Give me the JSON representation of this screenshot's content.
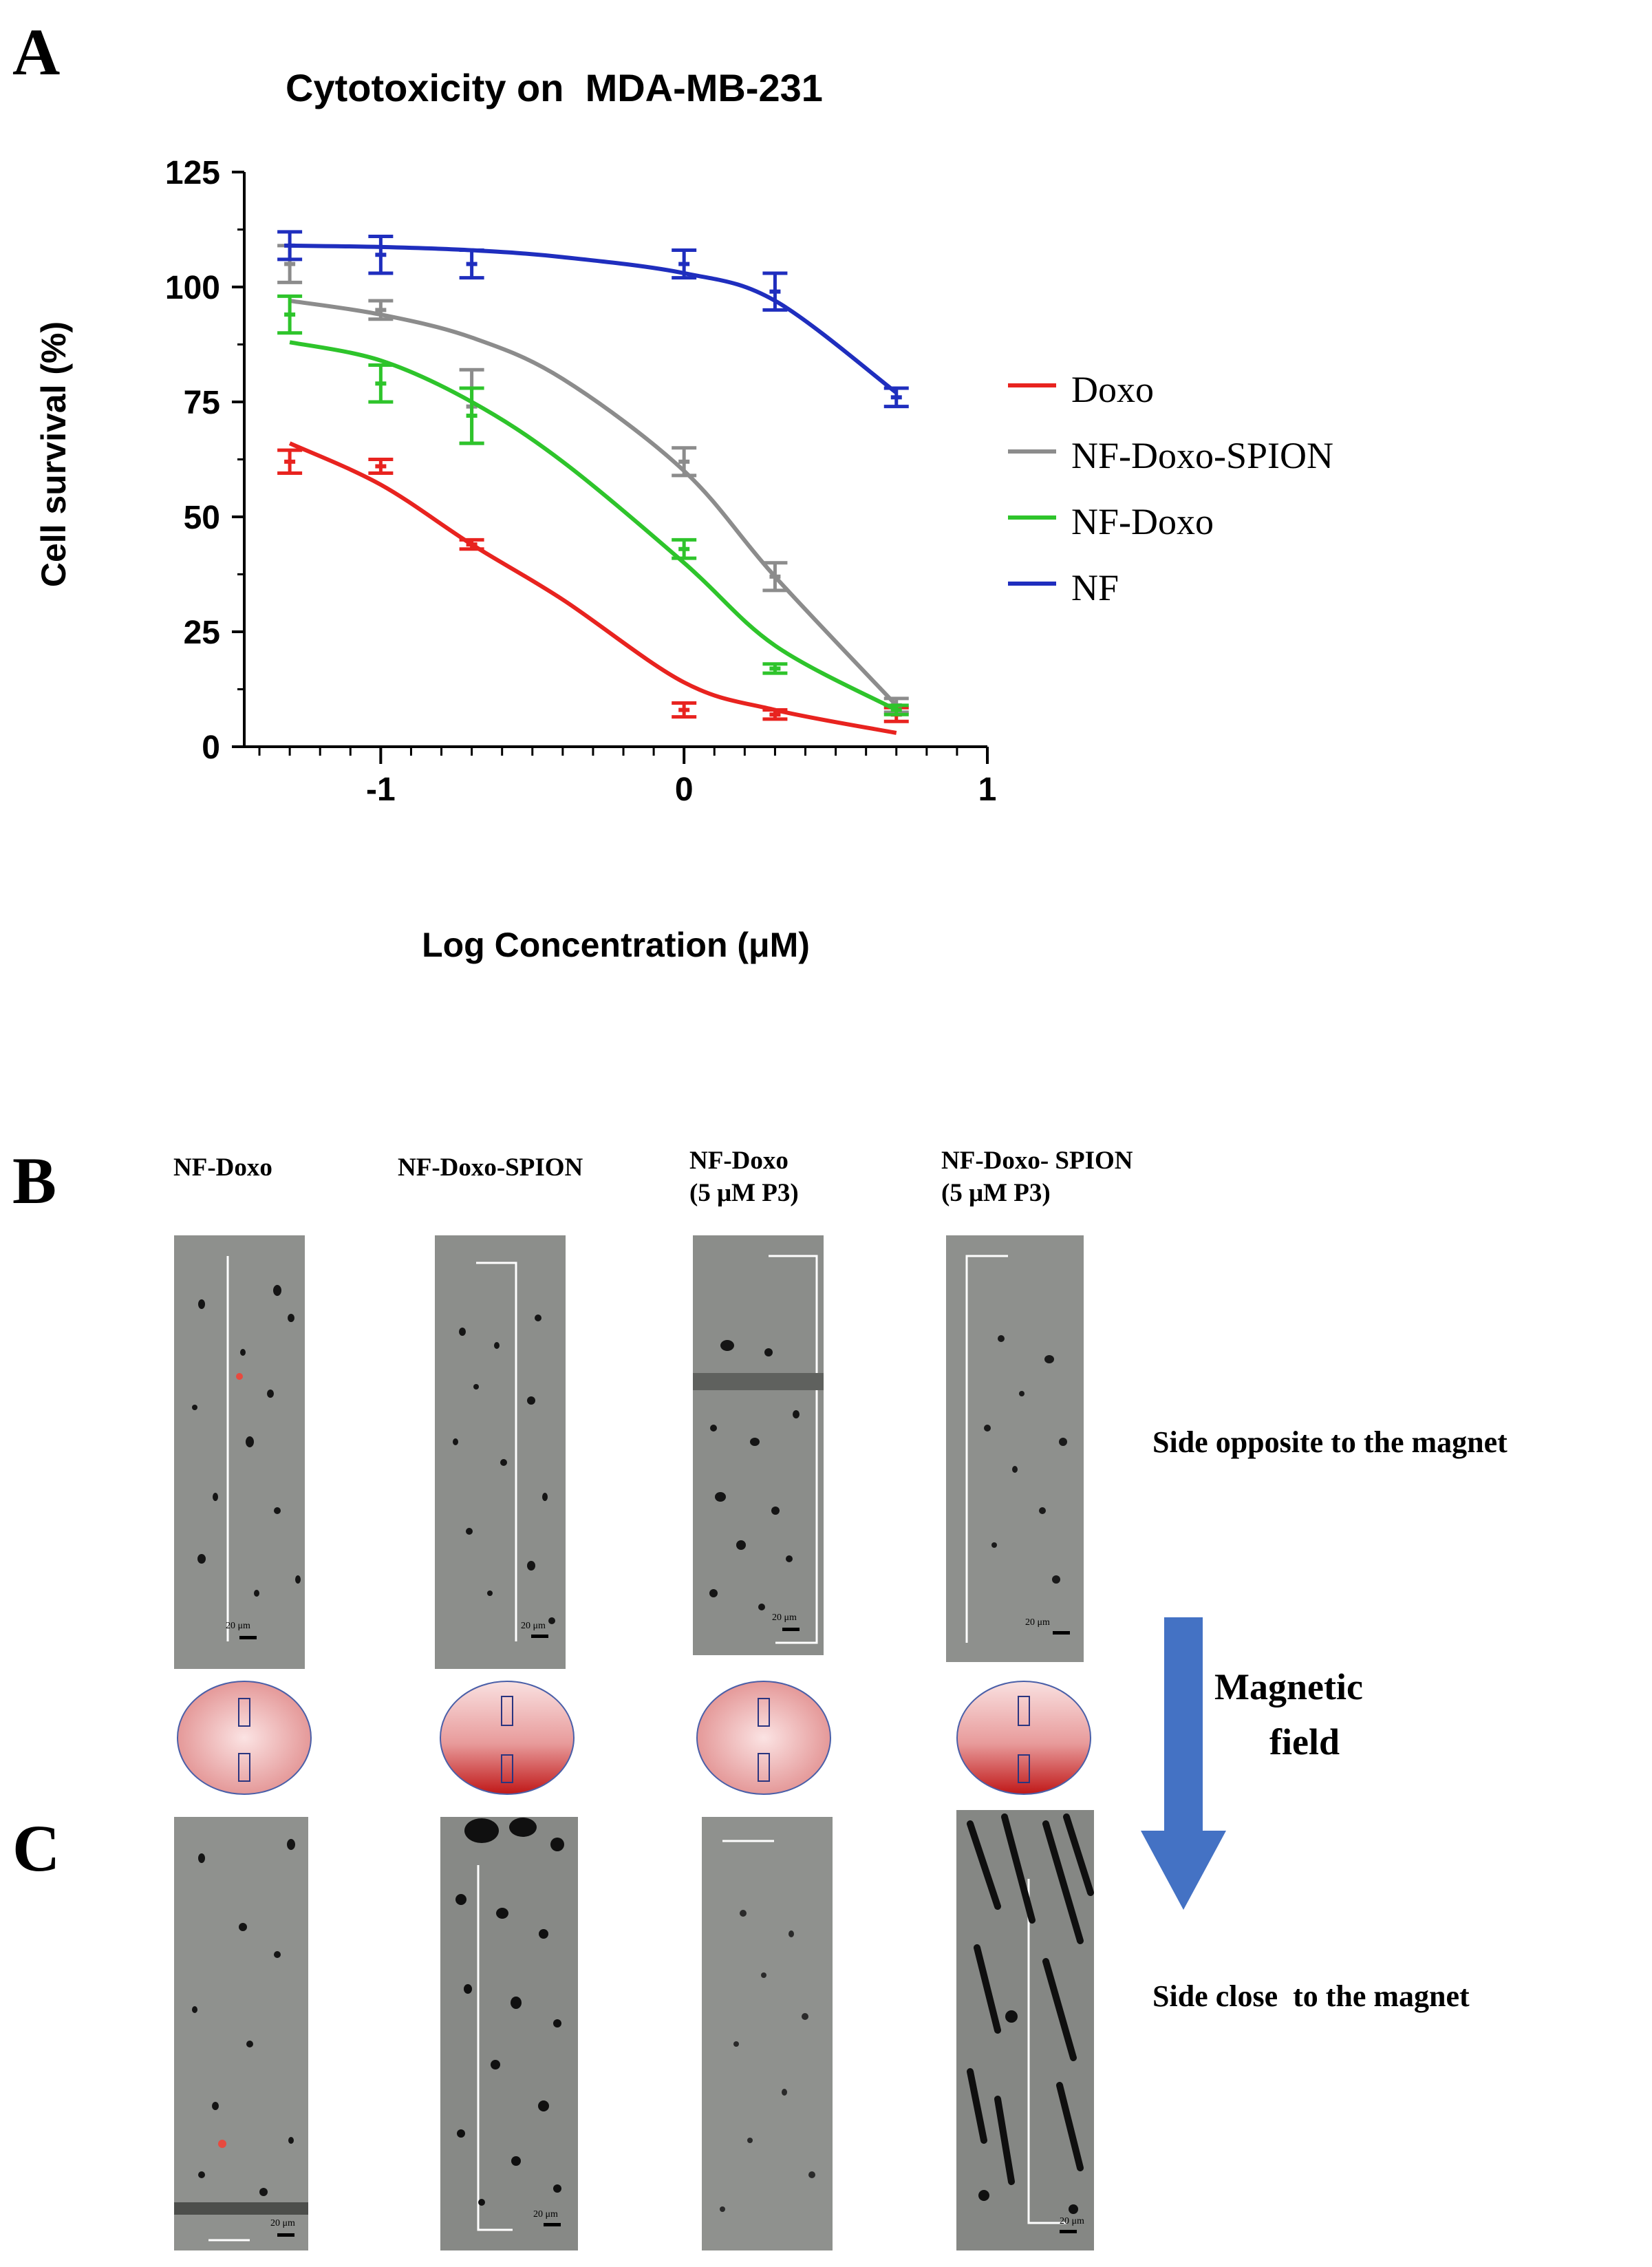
{
  "panel_a": {
    "letter": "A",
    "chart_data": {
      "type": "line",
      "title": "Cytotoxicity on  MDA-MB-231",
      "xlabel": "Log Concentration (μM)",
      "ylabel": "Cell survival (%)",
      "xlim": [
        -1.45,
        1
      ],
      "ylim": [
        0,
        125
      ],
      "xticks": [
        -1,
        0,
        1
      ],
      "yticks": [
        0,
        25,
        50,
        75,
        100,
        125
      ],
      "series": [
        {
          "name": "Doxo",
          "color": "#e8231f",
          "x": [
            -1.3,
            -1.0,
            -0.7,
            0.0,
            0.3,
            0.7
          ],
          "y": [
            62,
            61,
            44,
            8,
            7,
            7
          ],
          "err": [
            2.5,
            1.5,
            1,
            1.5,
            1,
            1.5
          ],
          "curve": [
            [
              -1.3,
              66
            ],
            [
              -1.0,
              57
            ],
            [
              -0.7,
              44
            ],
            [
              -0.4,
              32
            ],
            [
              0.0,
              14
            ],
            [
              0.3,
              8
            ],
            [
              0.7,
              3
            ]
          ]
        },
        {
          "name": "NF-Doxo-SPION",
          "color": "#8c8c8c",
          "x": [
            -1.3,
            -1.0,
            -0.7,
            0.0,
            0.3,
            0.7
          ],
          "y": [
            105,
            95,
            74,
            62,
            37,
            9
          ],
          "err": [
            4,
            2,
            8,
            3,
            3,
            1.5
          ],
          "curve": [
            [
              -1.3,
              97
            ],
            [
              -1.0,
              94
            ],
            [
              -0.7,
              89
            ],
            [
              -0.4,
              80
            ],
            [
              0.0,
              60
            ],
            [
              0.3,
              37
            ],
            [
              0.7,
              9
            ]
          ]
        },
        {
          "name": "NF-Doxo",
          "color": "#2ec42b",
          "x": [
            -1.3,
            -1.0,
            -0.7,
            0.0,
            0.3,
            0.7
          ],
          "y": [
            94,
            79,
            72,
            43,
            17,
            8
          ],
          "err": [
            4,
            4,
            6,
            2,
            1,
            1
          ],
          "curve": [
            [
              -1.3,
              88
            ],
            [
              -1.0,
              84
            ],
            [
              -0.7,
              75
            ],
            [
              -0.4,
              62
            ],
            [
              0.0,
              40
            ],
            [
              0.3,
              22
            ],
            [
              0.7,
              8
            ]
          ]
        },
        {
          "name": "NF",
          "color": "#1f2ebe",
          "x": [
            -1.3,
            -1.0,
            -0.7,
            0.0,
            0.3,
            0.7
          ],
          "y": [
            109,
            107,
            105,
            105,
            99,
            76
          ],
          "err": [
            3,
            4,
            3,
            3,
            4,
            2
          ],
          "curve": [
            [
              -1.3,
              109
            ],
            [
              -1.0,
              108.7
            ],
            [
              -0.7,
              108
            ],
            [
              -0.4,
              106.5
            ],
            [
              0.0,
              103
            ],
            [
              0.3,
              97
            ],
            [
              0.7,
              77
            ]
          ]
        }
      ],
      "legend_position": "right"
    }
  },
  "panel_b": {
    "letter": "B",
    "columns": [
      {
        "line1": "NF-Doxo",
        "line2": ""
      },
      {
        "line1": "NF-Doxo-SPION",
        "line2": ""
      },
      {
        "line1": "NF-Doxo",
        "line2": "(5 μM P3)"
      },
      {
        "line1": "NF-Doxo- SPION",
        "line2": "(5 μM P3)"
      }
    ],
    "side_label": "Side opposite to the magnet",
    "scale_labels": [
      "20  μm",
      "20 μm",
      "20 μm",
      "20 μm"
    ]
  },
  "arrow": {
    "line1": "Magnetic",
    "line2": "field",
    "color": "#4472c4"
  },
  "panel_c": {
    "letter": "C",
    "side_label": "Side close  to the magnet",
    "scale_labels": [
      "20 μm",
      "20 μm",
      "",
      "20 μm"
    ]
  }
}
